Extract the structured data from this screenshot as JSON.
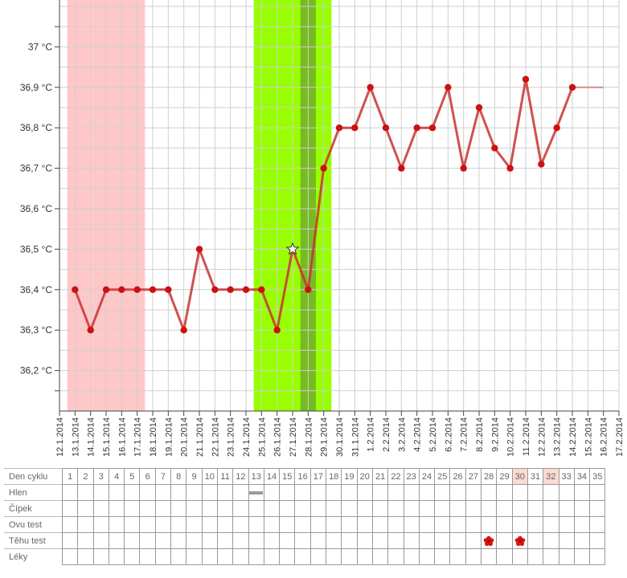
{
  "chart_data": {
    "type": "line",
    "x": [
      "12.1.2014",
      "13.1.2014",
      "14.1.2014",
      "15.1.2014",
      "16.1.2014",
      "17.1.2014",
      "18.1.2014",
      "19.1.2014",
      "20.1.2014",
      "21.1.2014",
      "22.1.2014",
      "23.1.2014",
      "24.1.2014",
      "25.1.2014",
      "26.1.2014",
      "27.1.2014",
      "28.1.2014",
      "29.1.2014",
      "30.1.2014",
      "31.1.2014",
      "1.2.2014",
      "2.2.2014",
      "3.2.2014",
      "4.2.2014",
      "5.2.2014",
      "6.2.2014",
      "7.2.2014",
      "8.2.2014",
      "9.2.2014",
      "10.2.2014",
      "11.2.2014",
      "12.2.2014",
      "13.2.2014",
      "14.2.2014",
      "15.2.2014",
      "16.2.2014",
      "17.2.2014"
    ],
    "series": [
      {
        "x": [
          "13.1.2014",
          "14.1.2014",
          "15.1.2014",
          "16.1.2014",
          "17.1.2014",
          "18.1.2014",
          "19.1.2014",
          "20.1.2014",
          "21.1.2014",
          "22.1.2014",
          "23.1.2014",
          "24.1.2014",
          "25.1.2014",
          "26.1.2014",
          "27.1.2014",
          "28.1.2014",
          "29.1.2014",
          "30.1.2014",
          "31.1.2014",
          "1.2.2014",
          "2.2.2014",
          "3.2.2014",
          "4.2.2014",
          "5.2.2014",
          "6.2.2014",
          "7.2.2014",
          "8.2.2014",
          "9.2.2014",
          "10.2.2014",
          "11.2.2014",
          "12.2.2014",
          "13.2.2014",
          "14.2.2014"
        ],
        "values": [
          36.4,
          36.3,
          36.4,
          36.4,
          36.4,
          36.4,
          36.4,
          36.3,
          36.5,
          36.4,
          36.4,
          36.4,
          36.4,
          36.3,
          36.5,
          36.4,
          36.7,
          36.8,
          36.8,
          36.9,
          36.8,
          36.7,
          36.8,
          36.8,
          36.9,
          36.7,
          36.85,
          36.75,
          36.7,
          36.92,
          36.71,
          36.8,
          36.9
        ]
      }
    ],
    "extension": {
      "x": [
        "14.2.2014",
        "16.2.2014"
      ],
      "value": 36.9
    },
    "ovulation_marker": {
      "x": "27.1.2014",
      "value": 36.5
    },
    "menstruation_band": {
      "from": "12.1.2014",
      "to": "17.1.2014",
      "color": "#ffc8c8"
    },
    "fertile_band": {
      "from": "24.1.2014",
      "to": "29.1.2014",
      "color": "#99ff00"
    },
    "peak_band": {
      "from": "27.1.2014",
      "to": "28.1.2014",
      "color": "#77bb22"
    },
    "y_ticks": [
      {
        "value": 37.0,
        "label": "37 °C"
      },
      {
        "value": 36.9,
        "label": "36,9 °C"
      },
      {
        "value": 36.8,
        "label": "36,8 °C"
      },
      {
        "value": 36.7,
        "label": "36,7 °C"
      },
      {
        "value": 36.6,
        "label": "36,6 °C"
      },
      {
        "value": 36.5,
        "label": "36,5 °C"
      },
      {
        "value": 36.4,
        "label": "36,4 °C"
      },
      {
        "value": 36.3,
        "label": "36,3 °C"
      },
      {
        "value": 36.2,
        "label": "36,2 °C"
      }
    ],
    "ylim": [
      36.1,
      37.1
    ],
    "grid": true,
    "line_color": "#c83232",
    "marker_color": "#cc1111"
  },
  "table": {
    "rows": [
      {
        "label": "Den cyklu"
      },
      {
        "label": "Hlen"
      },
      {
        "label": "Čípek"
      },
      {
        "label": "Ovu test"
      },
      {
        "label": "Těhu test"
      },
      {
        "label": "Léky"
      }
    ],
    "days": [
      "1",
      "2",
      "3",
      "4",
      "5",
      "6",
      "7",
      "8",
      "9",
      "10",
      "11",
      "12",
      "13",
      "14",
      "15",
      "16",
      "17",
      "18",
      "19",
      "20",
      "21",
      "22",
      "23",
      "24",
      "25",
      "26",
      "27",
      "28",
      "29",
      "30",
      "31",
      "32",
      "33",
      "34",
      "35"
    ],
    "highlight_days": [
      30,
      32
    ],
    "hlen_marks": [
      13
    ],
    "tehu_test_marks": [
      28,
      30
    ],
    "mark_color": "#dd1111"
  }
}
